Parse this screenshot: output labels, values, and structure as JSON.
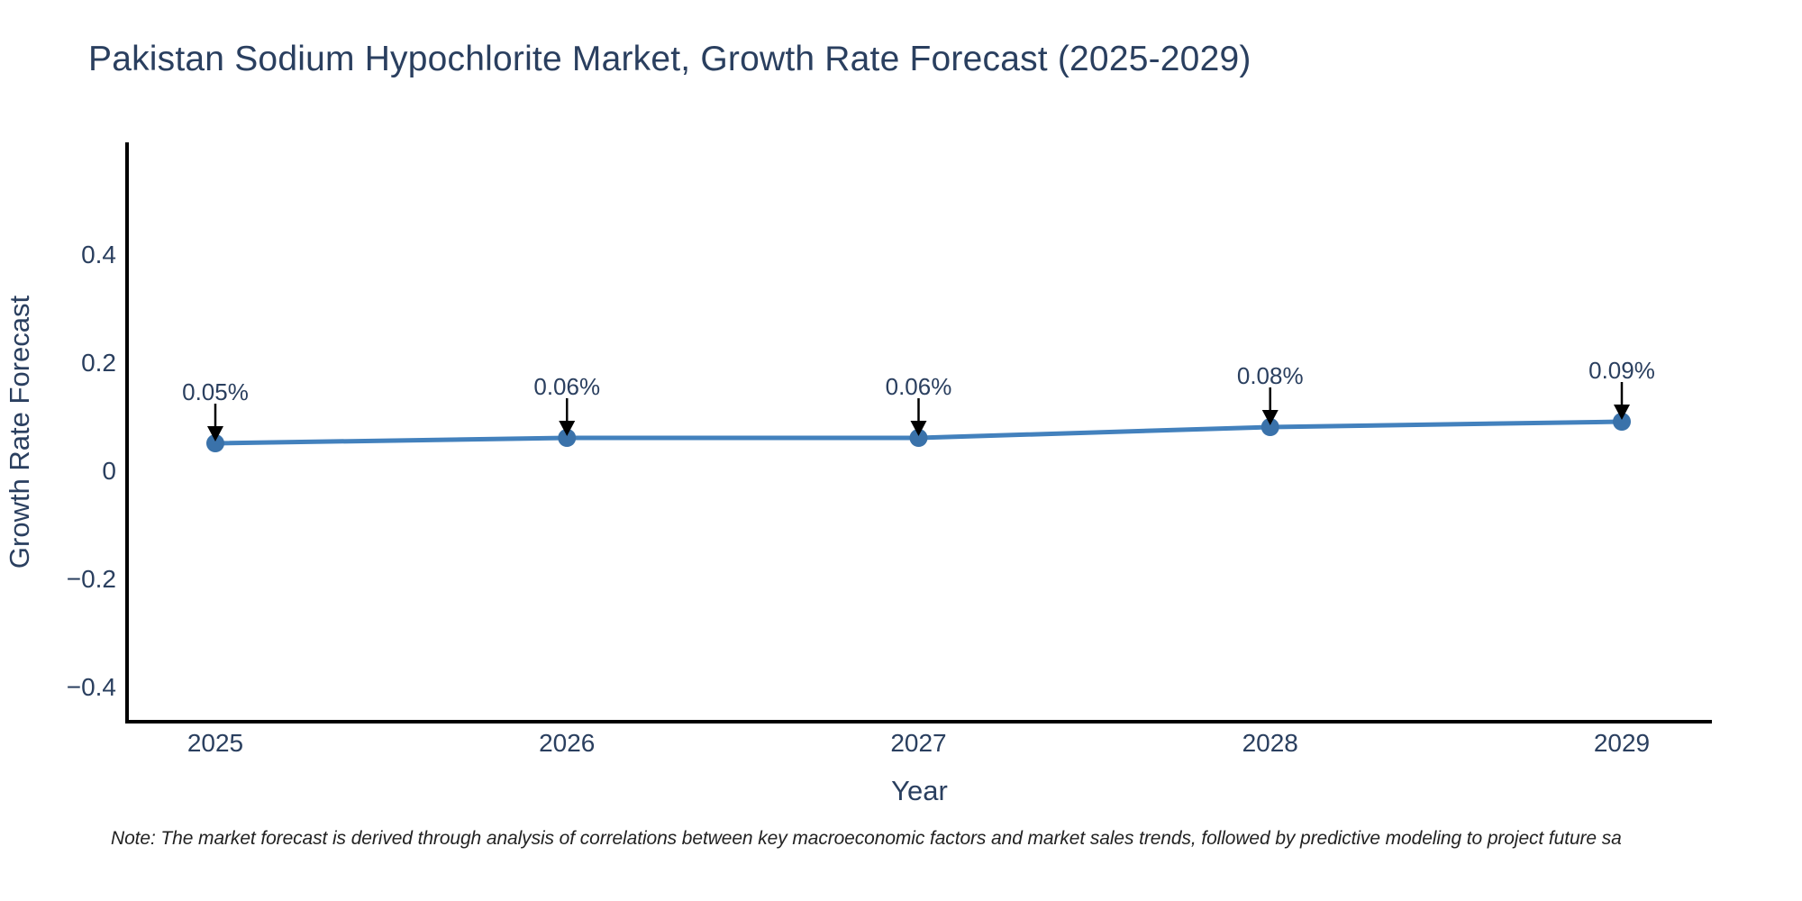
{
  "figure": {
    "note": "Note: The market forecast is derived through analysis of correlations between key macroeconomic factors and market sales trends, followed by predictive modeling to project future sa"
  },
  "chart_data": {
    "type": "line",
    "title": "Pakistan Sodium Hypochlorite Market, Growth Rate Forecast (2025-2029)",
    "xlabel": "Year",
    "ylabel": "Growth Rate Forecast",
    "categories": [
      2025,
      2026,
      2027,
      2028,
      2029
    ],
    "series": [
      {
        "name": "Growth Rate Forecast",
        "values": [
          0.05,
          0.06,
          0.06,
          0.08,
          0.09
        ]
      }
    ],
    "point_labels": [
      "0.05%",
      "0.06%",
      "0.06%",
      "0.08%",
      "0.09%"
    ],
    "y_ticks": [
      0.4,
      0.2,
      0,
      -0.2,
      -0.4
    ],
    "ylim": [
      -0.47,
      0.6
    ],
    "grid": false,
    "legend": "none",
    "annotation_style": "arrow-down-to-point",
    "colors": {
      "line": "#4381bd",
      "marker": "#3a72aa",
      "axis": "#000000",
      "text": "#2a3f5f",
      "arrow": "#000000",
      "note_text": "#222222",
      "background": "#ffffff"
    }
  }
}
